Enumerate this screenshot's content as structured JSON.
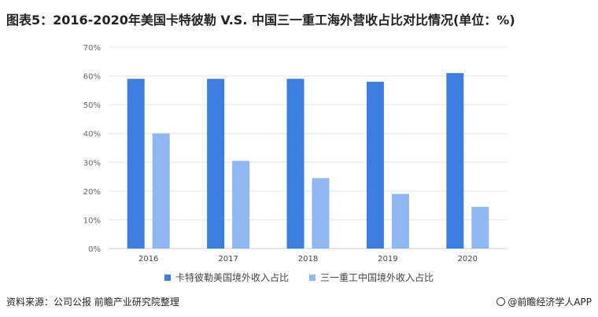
{
  "title": "图表5：2016-2020年美国卡特彼勒 V.S. 中国三一重工海外营收占比对比情况(单位：%)",
  "source": "资料来源：公司公报 前瞻产业研究院整理",
  "brand": "@前瞻经济学人APP",
  "colors": {
    "series1": "#3d7fe0",
    "series2": "#8fb8f2",
    "grid": "#e6e6e6",
    "axis": "#cfcfcf",
    "tick": "#666666"
  },
  "chart_data": {
    "type": "bar",
    "categories": [
      "2016",
      "2017",
      "2018",
      "2019",
      "2020"
    ],
    "series": [
      {
        "name": "卡特彼勒美国境外收入占比",
        "values": [
          59,
          59,
          59,
          58,
          61
        ]
      },
      {
        "name": "三一重工中国境外收入占比",
        "values": [
          40,
          30.5,
          24.5,
          19,
          14.5
        ]
      }
    ],
    "ylim": [
      0,
      70
    ],
    "yticks": [
      "0%",
      "10%",
      "20%",
      "30%",
      "40%",
      "50%",
      "60%",
      "70%"
    ],
    "grid": true,
    "legend": "bottom"
  }
}
